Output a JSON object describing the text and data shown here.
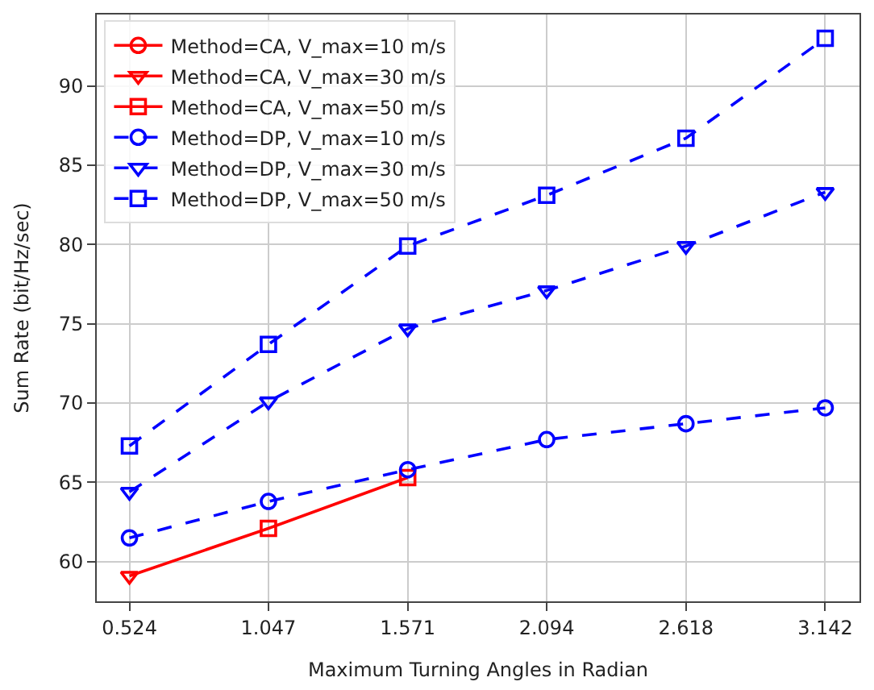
{
  "chart_data": {
    "type": "line",
    "xlabel": "Maximum Turning Angles in Radian",
    "ylabel": "Sum Rate (bit/Hz/sec)",
    "x": [
      0.524,
      1.047,
      1.571,
      2.094,
      2.618,
      3.142
    ],
    "xlim": [
      0.401,
      3.271
    ],
    "xticks": [
      0.524,
      1.047,
      1.571,
      2.094,
      2.618,
      3.142
    ],
    "ylim": [
      57.5,
      94.5
    ],
    "yticks": [
      60,
      65,
      70,
      75,
      80,
      85,
      90
    ],
    "grid": true,
    "legend": "top left",
    "series": [
      {
        "name": "Method=CA, V_max=10 m/s",
        "color": "#ff0000",
        "marker": "circle",
        "line_style": "solid",
        "values": [
          null,
          null,
          null,
          null,
          null,
          null
        ]
      },
      {
        "name": "Method=CA, V_max=30 m/s",
        "color": "#ff0000",
        "marker": "triangle",
        "line_style": "solid",
        "values": [
          null,
          null,
          null,
          null,
          null,
          null
        ]
      },
      {
        "name": "Method=CA, V_max=50 m/s",
        "color": "#ff0000",
        "marker": [
          "triangle",
          "square",
          "square"
        ],
        "line_style": "solid",
        "x": [
          0.524,
          1.047,
          1.571
        ],
        "values": [
          59.1,
          62.1,
          65.3
        ]
      },
      {
        "name": "Method=DP, V_max=10 m/s",
        "color": "#0000ff",
        "marker": "circle",
        "line_style": "dashed",
        "values": [
          61.5,
          63.8,
          65.8,
          67.7,
          68.7,
          69.7
        ]
      },
      {
        "name": "Method=DP, V_max=30 m/s",
        "color": "#0000ff",
        "marker": "triangle",
        "line_style": "dashed",
        "values": [
          64.4,
          70.1,
          74.7,
          77.1,
          79.9,
          83.3
        ]
      },
      {
        "name": "Method=DP, V_max=50 m/s",
        "color": "#0000ff",
        "marker": "square",
        "line_style": "dashed",
        "values": [
          67.3,
          73.7,
          79.9,
          83.1,
          86.7,
          93.0
        ]
      }
    ]
  }
}
